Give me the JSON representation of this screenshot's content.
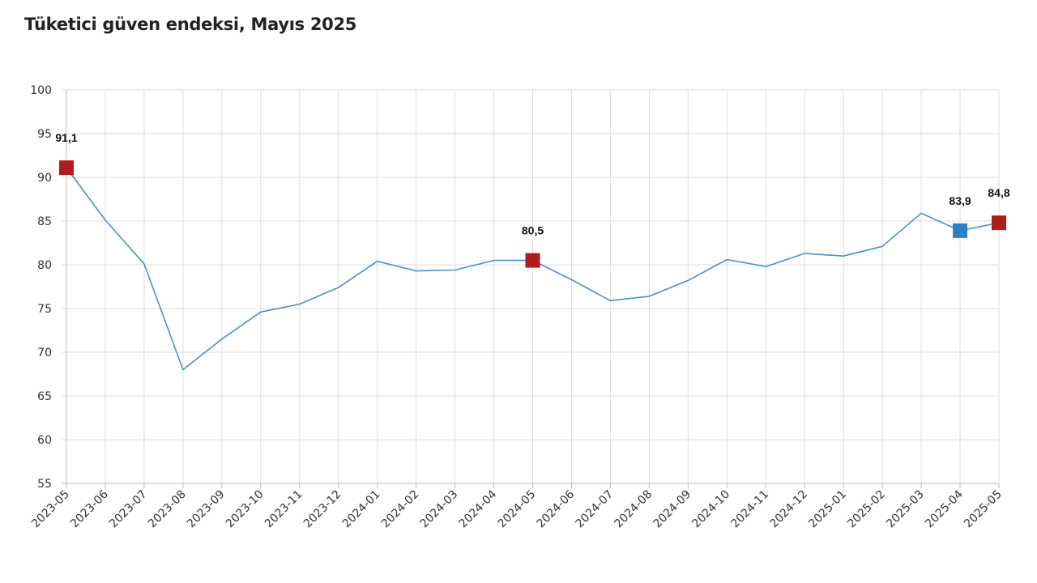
{
  "chart_data": {
    "type": "line",
    "title": "Tüketici güven endeksi, Mayıs 2025",
    "xlabel": "",
    "ylabel": "",
    "ylim": [
      55,
      100
    ],
    "yticks": [
      55,
      60,
      65,
      70,
      75,
      80,
      85,
      90,
      95,
      100
    ],
    "grid": true,
    "legend": "none",
    "categories": [
      "2023-05",
      "2023-06",
      "2023-07",
      "2023-08",
      "2023-09",
      "2023-10",
      "2023-11",
      "2023-12",
      "2024-01",
      "2024-02",
      "2024-03",
      "2024-04",
      "2024-05",
      "2024-06",
      "2024-07",
      "2024-08",
      "2024-09",
      "2024-10",
      "2024-11",
      "2024-12",
      "2025-01",
      "2025-02",
      "2025-03",
      "2025-04",
      "2025-05"
    ],
    "series": [
      {
        "values": [
          91.1,
          85.1,
          80.1,
          68.0,
          71.5,
          74.6,
          75.5,
          77.4,
          80.4,
          79.3,
          79.4,
          80.5,
          80.5,
          78.3,
          75.9,
          76.4,
          78.2,
          80.6,
          79.8,
          81.3,
          81.0,
          82.1,
          85.9,
          83.9,
          84.8
        ],
        "color": "#4a90c8"
      }
    ],
    "markers": [
      {
        "category": "2023-05",
        "value": 91.1,
        "label": "91,1",
        "color": "#b01c1c"
      },
      {
        "category": "2024-05",
        "value": 80.5,
        "label": "80,5",
        "color": "#b01c1c"
      },
      {
        "category": "2025-04",
        "value": 83.9,
        "label": "83,9",
        "color": "#2e80c4"
      },
      {
        "category": "2025-05",
        "value": 84.8,
        "label": "84,8",
        "color": "#b01c1c"
      }
    ],
    "gridColor": "#dddddd",
    "axisColor": "#bbbbbb"
  }
}
